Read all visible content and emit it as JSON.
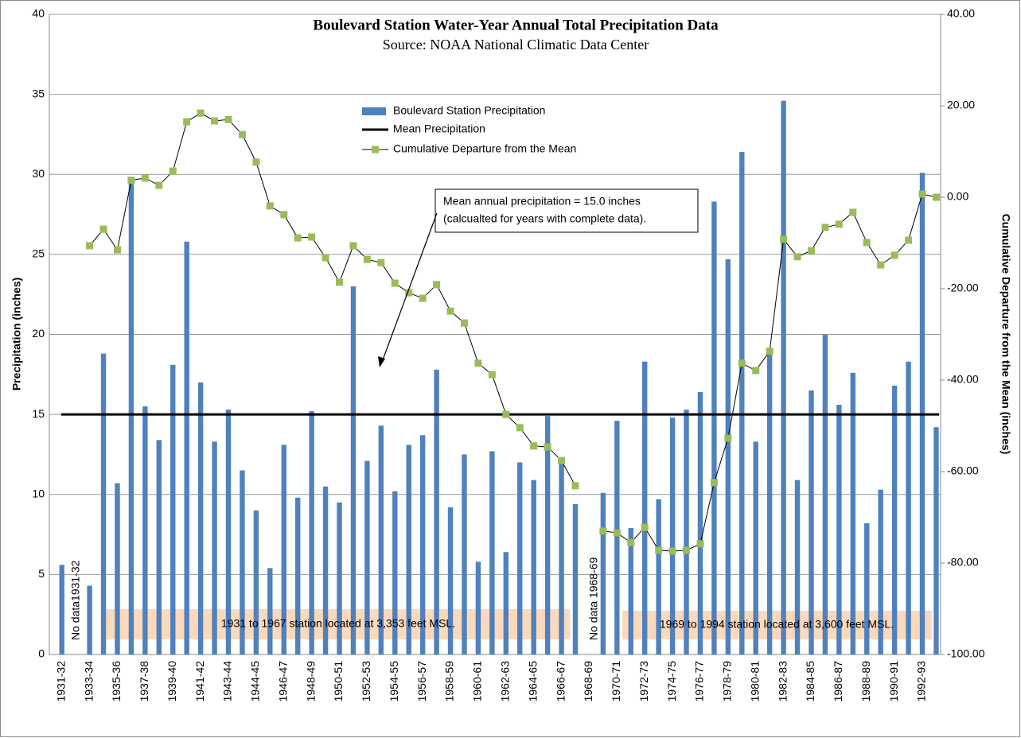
{
  "chart_data": {
    "type": "bar_line",
    "title": "Boulevard Station Water-Year Annual Total Precipitation Data",
    "subtitle": "Source: NOAA National Climatic Data Center",
    "y_label": "Precipitation (inches)",
    "y2_label": "Cumulative Departure from the Mean (inches)",
    "categories": [
      "1931-32",
      null,
      "1933-34",
      null,
      "1935-36",
      null,
      "1937-38",
      null,
      "1939-40",
      null,
      "1941-42",
      null,
      "1943-44",
      null,
      "1944-45",
      null,
      "1946-47",
      null,
      "1948-49",
      null,
      "1950-51",
      null,
      "1952-53",
      null,
      "1954-55",
      null,
      "1956-57",
      null,
      "1958-59",
      null,
      "1960-61",
      null,
      "1962-63",
      null,
      "1964-65",
      null,
      "1966-67",
      null,
      "1968-69",
      null,
      "1970-71",
      null,
      "1972-73",
      null,
      "1974-75",
      null,
      "1976-77",
      null,
      "1978-79",
      null,
      "1980-81",
      null,
      "1982-83",
      null,
      "1984-85",
      null,
      "1986-87",
      null,
      "1988-89",
      null,
      "1990-91",
      null,
      "1992-93",
      null
    ],
    "series": [
      {
        "name": "Boulevard Station Precipitation",
        "color": "#4f81bd",
        "kind": "bar",
        "values": [
          5.6,
          null,
          4.3,
          18.8,
          10.7,
          29.7,
          15.5,
          13.4,
          18.1,
          25.8,
          17.0,
          13.3,
          15.3,
          11.5,
          9.0,
          5.4,
          13.1,
          9.8,
          15.2,
          10.5,
          9.5,
          23.0,
          12.1,
          14.3,
          10.2,
          13.1,
          13.7,
          17.8,
          9.2,
          12.5,
          5.8,
          12.7,
          6.4,
          12.0,
          10.9,
          14.9,
          12.2,
          9.4,
          null,
          10.1,
          14.6,
          7.9,
          18.3,
          9.7,
          14.8,
          15.3,
          16.4,
          28.3,
          24.7,
          31.4,
          13.3,
          18.8,
          34.6,
          10.9,
          16.5,
          20.0,
          15.6,
          17.6,
          8.2,
          10.3,
          16.8,
          18.3,
          30.1,
          14.2
        ]
      },
      {
        "name": "Mean Precipitation",
        "color": "#000000",
        "kind": "hline",
        "value": 15.0
      },
      {
        "name": "Cumulative Departure from the Mean",
        "color": "#9bbb59",
        "kind": "line",
        "axis": "y2",
        "values": [
          null,
          null,
          -10.6,
          -7.0,
          -11.5,
          3.7,
          4.2,
          2.6,
          5.7,
          16.5,
          18.4,
          16.7,
          17.0,
          13.7,
          7.7,
          -1.9,
          -3.8,
          -8.9,
          -8.7,
          -13.2,
          -18.6,
          -10.6,
          -13.6,
          -14.3,
          -18.8,
          -20.9,
          -22.1,
          -19.1,
          -24.9,
          -27.5,
          -36.3,
          -38.8,
          -47.5,
          -50.4,
          -54.4,
          -54.6,
          -57.6,
          -63.1,
          null,
          -73.0,
          -73.4,
          -75.5,
          -72.2,
          -77.2,
          -77.4,
          -77.2,
          -75.8,
          -62.4,
          -52.7,
          -36.3,
          -37.9,
          -33.7,
          -9.2,
          -13.0,
          -11.7,
          -6.6,
          -5.9,
          -3.3,
          -9.9,
          -14.8,
          -12.7,
          -9.4,
          0.7,
          0.0
        ]
      }
    ],
    "ylim": [
      0,
      40
    ],
    "yticks": [
      0,
      5,
      10,
      15,
      20,
      25,
      30,
      35,
      40
    ],
    "y2lim": [
      -100,
      40
    ],
    "y2ticks": [
      {
        "value": -100,
        "label": "-100.00"
      },
      {
        "value": -80,
        "label": "-80.00"
      },
      {
        "value": -60,
        "label": "-60.00"
      },
      {
        "value": -40,
        "label": "-40.00"
      },
      {
        "value": -20,
        "label": "-20.00"
      },
      {
        "value": 0,
        "label": "0.00"
      },
      {
        "value": 20,
        "label": "20.00"
      },
      {
        "value": 40,
        "label": "40.00"
      }
    ],
    "grid": true,
    "annotations": [
      "Mean annual precipitation = 15.0 inches",
      "(calcualted for years with complete data).",
      "No data1931-32",
      "No data 1968-69",
      "1931 to 1967 station located at 3,353 feet MSL.",
      "1969 to 1994 station located at 3,600 feet MSL."
    ]
  }
}
